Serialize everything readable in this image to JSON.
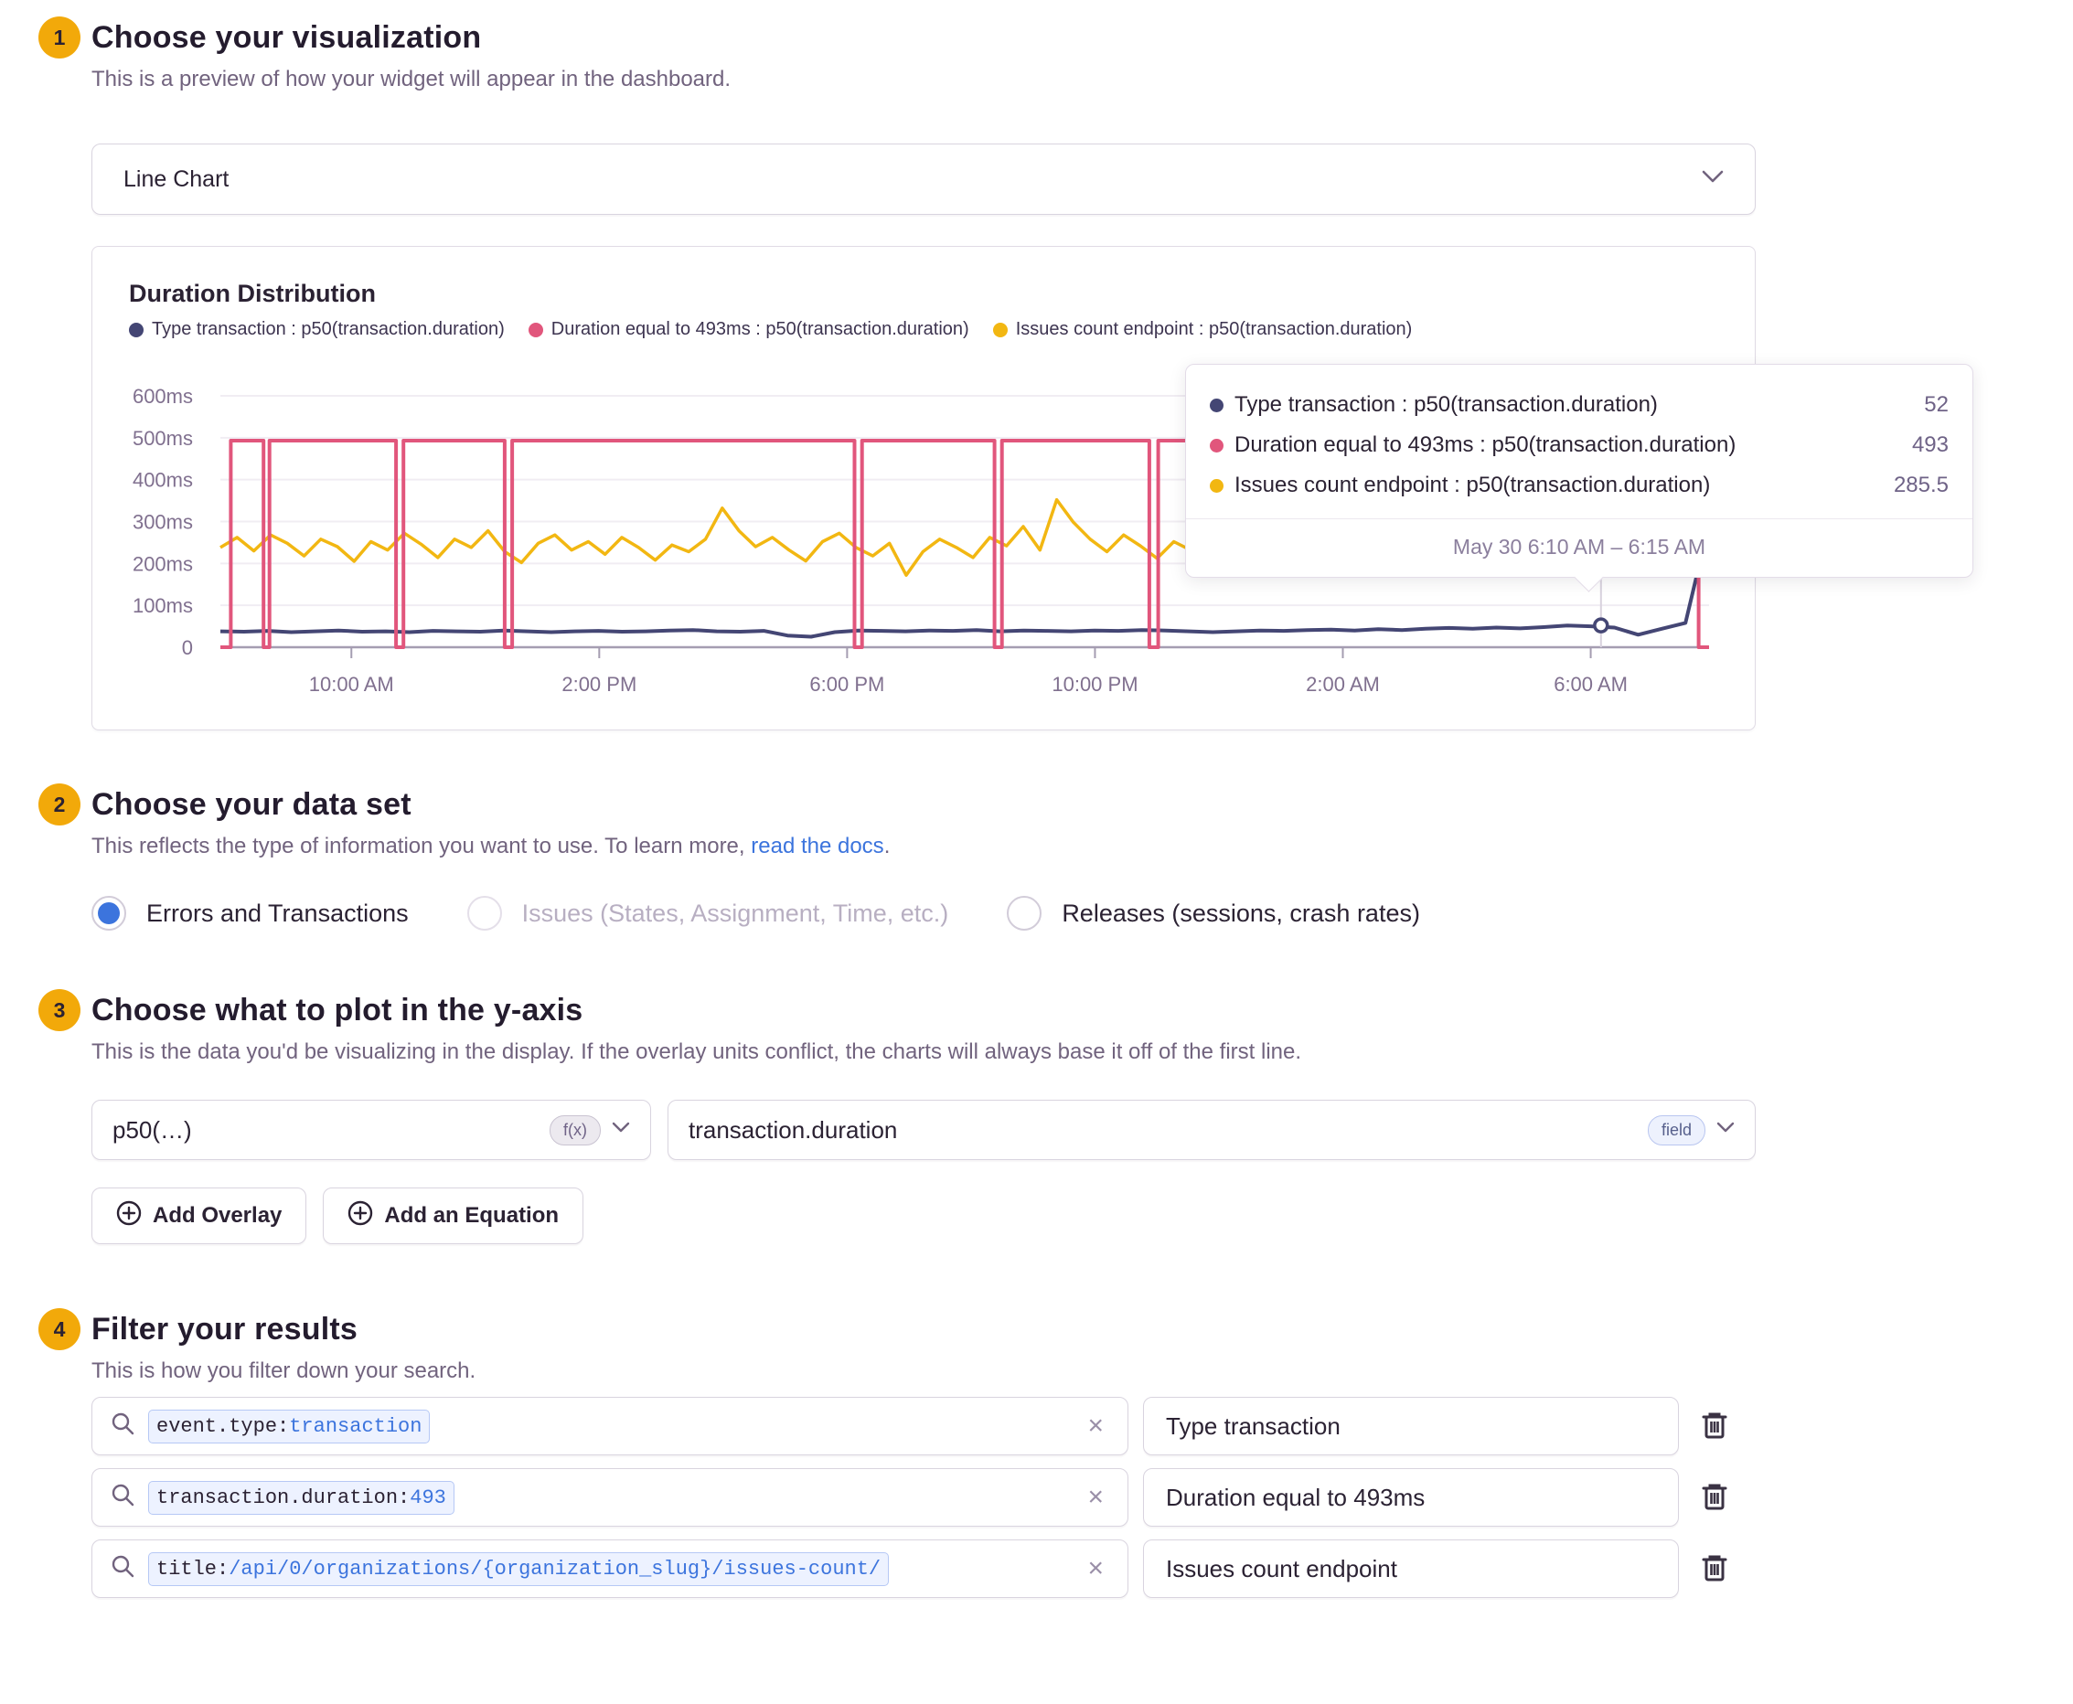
{
  "colors": {
    "accent_blue": "#3C74DD",
    "badge_yellow": "#F2A90A",
    "series_navy": "#444674",
    "series_pink": "#E1567C",
    "series_yellow": "#F2B712"
  },
  "icons": {
    "clear_glyph": "×"
  },
  "step1": {
    "number": "1",
    "title": "Choose your visualization",
    "subtitle": "This is a preview of how your widget will appear in the dashboard.",
    "visualization_selected": "Line Chart"
  },
  "chart_data": {
    "type": "line",
    "title": "Duration Distribution",
    "unit": "ms",
    "legend_position": "top",
    "grid": true,
    "ylim": [
      0,
      620
    ],
    "yticks": [
      {
        "value": 0,
        "label": "0"
      },
      {
        "value": 100,
        "label": "100ms"
      },
      {
        "value": 200,
        "label": "200ms"
      },
      {
        "value": 300,
        "label": "300ms"
      },
      {
        "value": 400,
        "label": "400ms"
      },
      {
        "value": 500,
        "label": "500ms"
      },
      {
        "value": 600,
        "label": "600ms"
      }
    ],
    "xticks": [
      {
        "f": 0.088,
        "label": "10:00 AM"
      },
      {
        "f": 0.2545,
        "label": "2:00 PM"
      },
      {
        "f": 0.421,
        "label": "6:00 PM"
      },
      {
        "f": 0.5875,
        "label": "10:00 PM"
      },
      {
        "f": 0.754,
        "label": "2:00 AM"
      },
      {
        "f": 0.9205,
        "label": "6:00 AM"
      }
    ],
    "series": [
      {
        "name": "Type transaction : p50(transaction.duration)",
        "color": "#444674",
        "style": "noisy",
        "values": [
          38,
          37,
          39,
          36,
          38,
          40,
          37,
          38,
          36,
          39,
          38,
          37,
          40,
          38,
          36,
          38,
          39,
          37,
          38,
          40,
          41,
          38,
          37,
          39,
          28,
          25,
          36,
          40,
          39,
          38,
          40,
          39,
          41,
          38,
          40,
          39,
          38,
          40,
          39,
          41,
          40,
          38,
          36,
          38,
          40,
          39,
          41,
          42,
          40,
          43,
          41,
          44,
          46,
          44,
          47,
          45,
          48,
          52,
          50,
          47,
          30,
          44,
          58,
          295
        ]
      },
      {
        "name": "Duration equal to 493ms : p50(transaction.duration)",
        "color": "#E1567C",
        "style": "pulse",
        "pulse_value": 493,
        "baseline": 0,
        "pulses": [
          [
            0.007,
            0.029
          ],
          [
            0.033,
            0.118
          ],
          [
            0.123,
            0.191
          ],
          [
            0.196,
            0.426
          ],
          [
            0.431,
            0.52
          ],
          [
            0.525,
            0.624
          ],
          [
            0.63,
            0.993
          ]
        ]
      },
      {
        "name": "Issues count endpoint : p50(transaction.duration)",
        "color": "#F2B712",
        "style": "noisy",
        "values": [
          238,
          262,
          230,
          268,
          248,
          218,
          258,
          240,
          205,
          252,
          232,
          272,
          246,
          214,
          258,
          238,
          278,
          228,
          202,
          248,
          268,
          232,
          252,
          222,
          262,
          238,
          208,
          244,
          228,
          258,
          332,
          278,
          240,
          262,
          232,
          206,
          252,
          272,
          238,
          218,
          248,
          172,
          228,
          258,
          238,
          214,
          262,
          242,
          288,
          232,
          352,
          298,
          258,
          228,
          268,
          242,
          212,
          252,
          232,
          262,
          238,
          218,
          258,
          278,
          242,
          222,
          248,
          228,
          268,
          238,
          252,
          212,
          244,
          262,
          232,
          248,
          222,
          258,
          238,
          228,
          248,
          242,
          238,
          232,
          244,
          238,
          236,
          240,
          238,
          240
        ]
      }
    ],
    "hover": {
      "f": 0.9274,
      "value": 52,
      "series": "Type transaction : p50(transaction.duration)"
    }
  },
  "tooltip": {
    "rows": [
      {
        "label": "Type transaction : p50(transaction.duration)",
        "value": "52",
        "color": "#444674"
      },
      {
        "label": "Duration equal to 493ms : p50(transaction.duration)",
        "value": "493",
        "color": "#E1567C"
      },
      {
        "label": "Issues count endpoint : p50(transaction.duration)",
        "value": "285.5",
        "color": "#F2B712"
      }
    ],
    "footer": "May 30 6:10 AM – 6:15 AM"
  },
  "step2": {
    "number": "2",
    "title": "Choose your data set",
    "subtitle_prefix": "This reflects the type of information you want to use. To learn more, ",
    "subtitle_link": "read the docs",
    "subtitle_suffix": ".",
    "options": [
      {
        "label": "Errors and Transactions",
        "state": "selected"
      },
      {
        "label": "Issues (States, Assignment, Time, etc.)",
        "state": "disabled"
      },
      {
        "label": "Releases (sessions, crash rates)",
        "state": "normal"
      }
    ]
  },
  "step3": {
    "number": "3",
    "title": "Choose what to plot in the y-axis",
    "subtitle": "This is the data you'd be visualizing in the display. If the overlay units conflict, the charts will always base it off of the first line.",
    "function_value": "p50(…)",
    "function_badge": "f(x)",
    "field_value": "transaction.duration",
    "field_badge": "field",
    "add_overlay_label": "Add Overlay",
    "add_equation_label": "Add an Equation"
  },
  "step4": {
    "number": "4",
    "title": "Filter your results",
    "subtitle": "This is how you filter down your search.",
    "rows": [
      {
        "query_key": "event.type:",
        "query_value": "transaction",
        "alias": "Type transaction"
      },
      {
        "query_key": "transaction.duration:",
        "query_value": "493",
        "alias": "Duration equal to 493ms"
      },
      {
        "query_key": "title:",
        "query_value": "/api/0/organizations/{organization_slug}/issues-count/",
        "alias": "Issues count endpoint"
      }
    ]
  }
}
